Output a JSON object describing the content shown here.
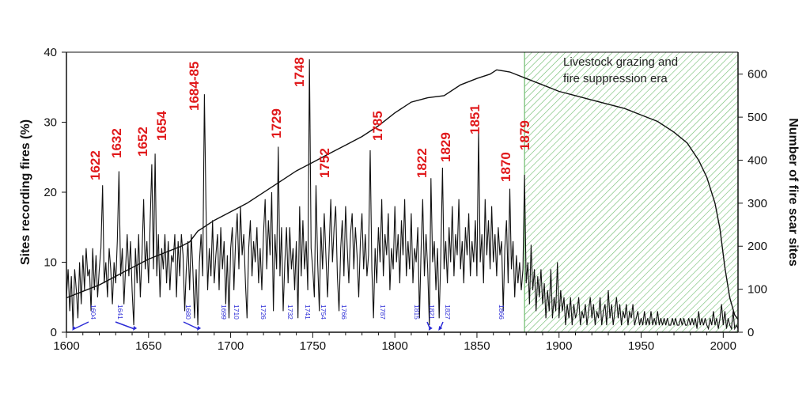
{
  "chart_data": {
    "type": "line",
    "title": "",
    "xlabel": "",
    "ylabel": "Sites recording fires (%)",
    "ylabel_right": "Number of fire scar sites",
    "xlim": [
      1600,
      2009
    ],
    "ylim": [
      0,
      40
    ],
    "ylim_right": [
      0,
      651
    ],
    "xticks": [
      "1600",
      "1650",
      "1700",
      "1750",
      "1800",
      "1850",
      "1900",
      "1950",
      "2000"
    ],
    "yticks": [
      "0",
      "10",
      "20",
      "30",
      "40"
    ],
    "yticks_right": [
      "0",
      "100",
      "200",
      "300",
      "400",
      "500",
      "600"
    ],
    "grid": false,
    "shaded_region": {
      "start": 1879,
      "end": 2009,
      "label_line1": "Livestock grazing and",
      "label_line2": "fire suppression era",
      "color": "#6dbb6d"
    },
    "fire_series": {
      "name": "Sites recording fires (%)",
      "start_year": 1600,
      "values": [
        5,
        9,
        3,
        8,
        0.5,
        9,
        6,
        2,
        10,
        4,
        11,
        6,
        12,
        8,
        9,
        3,
        12,
        6,
        11,
        5,
        9,
        12,
        21,
        7,
        10,
        5,
        12,
        9,
        4,
        10,
        7,
        13,
        23,
        8,
        12,
        4,
        9,
        14,
        8,
        13,
        6,
        1,
        12,
        7,
        14,
        5,
        11,
        19,
        9,
        13,
        7,
        16,
        24,
        9,
        25.5,
        8,
        14,
        5,
        12,
        9,
        14,
        7,
        13,
        6,
        11,
        10,
        14,
        5,
        13,
        8,
        14,
        11,
        3,
        9,
        13,
        6,
        14,
        9,
        2,
        9,
        1,
        10,
        14,
        8,
        34,
        18,
        6,
        12,
        8,
        16,
        7,
        11,
        14,
        6,
        15,
        9,
        13,
        4,
        11,
        2,
        12,
        15,
        6,
        13,
        17,
        9,
        18,
        11,
        14,
        7,
        2,
        12,
        16,
        8,
        13,
        10,
        15,
        7,
        12,
        6,
        14,
        19,
        9,
        16,
        11,
        20,
        3,
        14,
        9,
        26.5,
        8,
        15,
        3,
        10,
        15,
        7,
        15,
        9,
        12,
        6,
        13,
        2,
        18,
        8,
        16,
        9,
        13,
        6,
        39,
        12,
        9,
        5,
        21,
        10,
        3,
        15,
        9,
        17,
        11,
        5,
        12,
        19,
        10,
        15,
        18,
        8,
        3,
        12,
        16,
        8,
        18,
        12,
        7,
        14,
        17,
        9,
        15,
        11,
        5,
        13,
        17,
        9,
        14,
        8,
        11,
        26,
        9,
        2,
        12,
        7,
        15,
        10,
        19,
        8,
        14,
        11,
        17,
        6,
        12,
        9,
        18,
        10,
        14,
        7,
        16,
        11,
        19,
        8,
        13,
        9,
        17,
        7,
        12,
        10,
        15,
        2,
        12,
        19,
        8,
        14,
        9,
        1,
        22,
        10,
        13,
        6,
        12,
        2,
        11,
        23.5,
        9,
        13,
        7,
        15,
        10,
        18,
        8,
        14,
        11,
        19,
        9,
        13,
        7,
        15,
        11,
        17,
        8,
        13,
        10,
        16,
        8,
        29,
        10,
        14,
        7,
        19,
        11,
        16,
        9,
        18,
        10,
        14,
        8,
        15,
        11,
        13,
        3,
        12,
        16,
        7,
        20.5,
        9,
        13,
        5,
        11,
        7,
        10,
        6,
        9,
        22.5,
        7,
        10,
        4,
        12.5,
        6,
        9,
        3,
        8,
        5,
        9,
        4,
        7,
        2,
        6,
        3,
        9,
        2,
        5,
        3,
        10,
        2,
        6,
        3,
        5,
        1,
        4,
        2,
        5,
        1,
        4,
        2,
        3,
        5,
        1,
        3,
        2,
        4,
        1,
        3,
        5,
        2,
        4,
        1,
        3,
        2,
        5,
        1,
        3,
        4,
        1,
        6,
        2,
        4,
        1,
        3,
        5,
        2,
        4,
        1,
        3,
        2,
        4,
        1,
        3,
        2,
        4,
        1,
        2,
        3,
        1,
        2,
        1,
        3,
        1,
        2,
        1,
        3,
        1,
        2,
        1,
        3,
        1,
        2,
        1,
        2,
        1,
        2,
        1,
        1,
        2,
        1,
        2,
        1,
        1,
        2,
        1,
        2,
        1,
        1,
        2,
        1,
        2,
        1,
        2,
        0.5,
        3,
        1,
        2,
        1,
        2,
        1,
        0.5,
        2,
        1,
        3,
        1,
        2,
        0.5,
        2,
        4,
        1,
        3,
        0.5,
        2,
        1,
        0.5,
        3,
        0.5,
        1,
        0.5
      ]
    },
    "sample_depth_series": {
      "name": "Number of fire scar sites",
      "points": [
        [
          1600,
          80
        ],
        [
          1610,
          95
        ],
        [
          1620,
          110
        ],
        [
          1630,
          130
        ],
        [
          1640,
          150
        ],
        [
          1650,
          170
        ],
        [
          1660,
          185
        ],
        [
          1670,
          200
        ],
        [
          1675,
          210
        ],
        [
          1680,
          235
        ],
        [
          1690,
          260
        ],
        [
          1700,
          280
        ],
        [
          1710,
          300
        ],
        [
          1720,
          325
        ],
        [
          1730,
          350
        ],
        [
          1740,
          375
        ],
        [
          1750,
          395
        ],
        [
          1760,
          415
        ],
        [
          1770,
          435
        ],
        [
          1780,
          455
        ],
        [
          1790,
          480
        ],
        [
          1800,
          510
        ],
        [
          1810,
          535
        ],
        [
          1820,
          545
        ],
        [
          1830,
          550
        ],
        [
          1840,
          575
        ],
        [
          1850,
          590
        ],
        [
          1858,
          600
        ],
        [
          1862,
          610
        ],
        [
          1870,
          605
        ],
        [
          1880,
          590
        ],
        [
          1890,
          575
        ],
        [
          1900,
          560
        ],
        [
          1910,
          550
        ],
        [
          1920,
          540
        ],
        [
          1930,
          530
        ],
        [
          1940,
          520
        ],
        [
          1950,
          505
        ],
        [
          1960,
          490
        ],
        [
          1970,
          465
        ],
        [
          1978,
          440
        ],
        [
          1985,
          400
        ],
        [
          1990,
          360
        ],
        [
          1995,
          300
        ],
        [
          1998,
          240
        ],
        [
          2001,
          150
        ],
        [
          2004,
          80
        ],
        [
          2007,
          40
        ],
        [
          2009,
          30
        ]
      ]
    },
    "red_annotations": [
      {
        "label": "1622",
        "year": 1622,
        "value": 21
      },
      {
        "label": "1632",
        "year": 1632,
        "value": 23
      },
      {
        "label": "1652",
        "year": 1652,
        "value": 24
      },
      {
        "label": "1654",
        "year": 1654,
        "value": 25.5
      },
      {
        "label": "1684-85",
        "year": 1684,
        "value": 34
      },
      {
        "label": "1729",
        "year": 1729,
        "value": 26.5
      },
      {
        "label": "1748",
        "year": 1748,
        "value": 39
      },
      {
        "label": "1752",
        "year": 1752,
        "value": 21
      },
      {
        "label": "1785",
        "year": 1785,
        "value": 26
      },
      {
        "label": "1822",
        "year": 1822,
        "value": 22
      },
      {
        "label": "1829",
        "year": 1829,
        "value": 23.5
      },
      {
        "label": "1851",
        "year": 1851,
        "value": 29
      },
      {
        "label": "1870",
        "year": 1870,
        "value": 20.5
      },
      {
        "label": "1879",
        "year": 1879,
        "value": 22.5
      }
    ],
    "blue_annotations": [
      {
        "label": "1604",
        "year": 1604,
        "arrow": true
      },
      {
        "label": "1641",
        "year": 1641,
        "arrow": true
      },
      {
        "label": "1680",
        "year": 1680,
        "arrow": true
      },
      {
        "label": "1699",
        "year": 1699
      },
      {
        "label": "1710",
        "year": 1710
      },
      {
        "label": "1726",
        "year": 1726
      },
      {
        "label": "1732",
        "year": 1732
      },
      {
        "label": "1741",
        "year": 1741
      },
      {
        "label": "1754",
        "year": 1754
      },
      {
        "label": "1766",
        "year": 1766
      },
      {
        "label": "1787",
        "year": 1787
      },
      {
        "label": "1815",
        "year": 1815
      },
      {
        "label": "1821",
        "year": 1821,
        "arrow": true
      },
      {
        "label": "1827",
        "year": 1827,
        "arrow": true
      },
      {
        "label": "1866",
        "year": 1866
      }
    ],
    "colors": {
      "series": "#111111",
      "red": "#e0191b",
      "blue": "#2b2bd6",
      "hatch": "#6dbb6d"
    }
  }
}
